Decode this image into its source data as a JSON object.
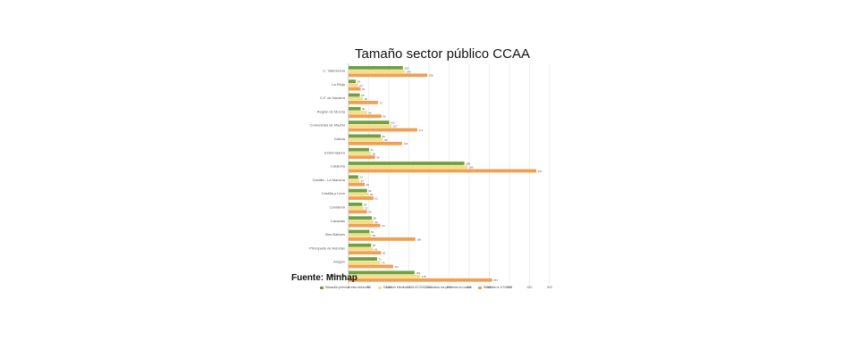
{
  "chart_data": {
    "type": "bar",
    "orientation": "horizontal",
    "title": "Tamaño sector público CCAA",
    "source": "Fuente: Minhap",
    "categories": [
      "C. Valenciana",
      "La Rioja",
      "C.F. de Navarra",
      "Región de Murcia",
      "Comunidad de Madrid",
      "Galicia",
      "Extremadura",
      "Cataluña",
      "Castilla - La Mancha",
      "Castilla y León",
      "Cantabria",
      "Canarias",
      "Illes Balears",
      "Principado de Asturias",
      "Aragón",
      "Andalucía"
    ],
    "series": [
      {
        "name": "Situación prevista tras reducción",
        "color": "#70a040",
        "values": [
          135,
          18,
          28,
          30,
          101,
          80,
          51,
          288,
          24,
          46,
          34,
          58,
          52,
          56,
          71,
          164
        ]
      },
      {
        "name": "Situación efectiva a 01/07/2018 incluidos los procesos en curso",
        "color": "#f4e08a",
        "values": [
          140,
          24,
          36,
          46,
          107,
          86,
          56,
          296,
          27,
          50,
          37,
          62,
          56,
          61,
          79,
          178
        ]
      },
      {
        "name": "Situación a 1/7/2010",
        "color": "#f0a050",
        "values": [
          196,
          30,
          73,
          82,
          171,
          133,
          66,
          467,
          40,
          62,
          46,
          79,
          166,
          81,
          111,
          357
        ]
      }
    ],
    "xlim": [
      0,
      500
    ],
    "grid": true,
    "legend_position": "bottom"
  }
}
